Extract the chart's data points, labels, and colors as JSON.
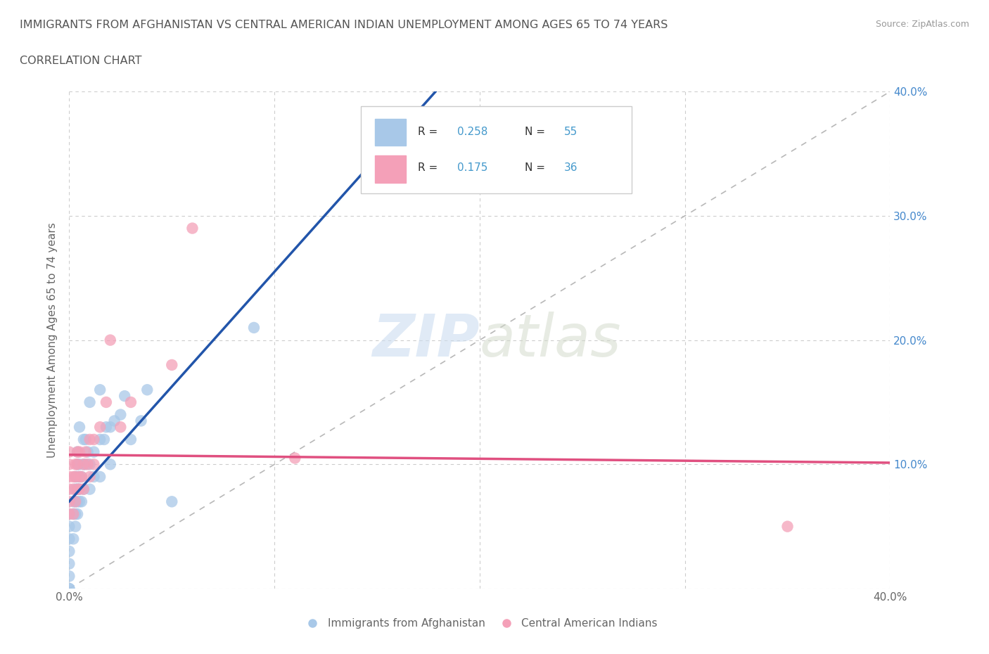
{
  "title": "IMMIGRANTS FROM AFGHANISTAN VS CENTRAL AMERICAN INDIAN UNEMPLOYMENT AMONG AGES 65 TO 74 YEARS",
  "subtitle": "CORRELATION CHART",
  "source": "Source: ZipAtlas.com",
  "ylabel": "Unemployment Among Ages 65 to 74 years",
  "xlim": [
    0.0,
    0.4
  ],
  "ylim": [
    0.0,
    0.4
  ],
  "afghanistan_color": "#a8c8e8",
  "central_american_color": "#f4a0b8",
  "afghanistan_line_color": "#2255aa",
  "central_american_line_color": "#e05080",
  "diagonal_color": "#b8b8b8",
  "r_afghanistan": "0.258",
  "n_afghanistan": "55",
  "r_central_american": "0.175",
  "n_central_american": "36",
  "watermark_zip": "ZIP",
  "watermark_atlas": "atlas",
  "legend_label1": "Immigrants from Afghanistan",
  "legend_label2": "Central American Indians",
  "afghanistan_x": [
    0.0,
    0.0,
    0.0,
    0.0,
    0.0,
    0.0,
    0.0,
    0.0,
    0.002,
    0.002,
    0.002,
    0.003,
    0.003,
    0.003,
    0.003,
    0.003,
    0.004,
    0.004,
    0.004,
    0.004,
    0.004,
    0.004,
    0.005,
    0.005,
    0.005,
    0.005,
    0.005,
    0.006,
    0.006,
    0.007,
    0.007,
    0.007,
    0.008,
    0.008,
    0.009,
    0.01,
    0.01,
    0.01,
    0.012,
    0.012,
    0.015,
    0.015,
    0.015,
    0.017,
    0.018,
    0.02,
    0.02,
    0.022,
    0.025,
    0.027,
    0.03,
    0.035,
    0.038,
    0.05,
    0.09
  ],
  "afghanistan_y": [
    0.0,
    0.0,
    0.01,
    0.02,
    0.03,
    0.04,
    0.05,
    0.06,
    0.04,
    0.06,
    0.07,
    0.05,
    0.06,
    0.07,
    0.08,
    0.09,
    0.06,
    0.07,
    0.08,
    0.09,
    0.1,
    0.11,
    0.07,
    0.08,
    0.09,
    0.1,
    0.13,
    0.07,
    0.09,
    0.08,
    0.1,
    0.12,
    0.1,
    0.12,
    0.11,
    0.08,
    0.1,
    0.15,
    0.09,
    0.11,
    0.09,
    0.12,
    0.16,
    0.12,
    0.13,
    0.1,
    0.13,
    0.135,
    0.14,
    0.155,
    0.12,
    0.135,
    0.16,
    0.07,
    0.21
  ],
  "central_american_x": [
    0.0,
    0.0,
    0.0,
    0.0,
    0.0,
    0.0,
    0.002,
    0.002,
    0.002,
    0.003,
    0.003,
    0.003,
    0.004,
    0.004,
    0.004,
    0.005,
    0.005,
    0.005,
    0.006,
    0.007,
    0.007,
    0.008,
    0.009,
    0.01,
    0.01,
    0.012,
    0.012,
    0.015,
    0.018,
    0.02,
    0.025,
    0.03,
    0.05,
    0.06,
    0.11,
    0.35
  ],
  "central_american_y": [
    0.06,
    0.07,
    0.08,
    0.09,
    0.1,
    0.11,
    0.06,
    0.08,
    0.09,
    0.07,
    0.09,
    0.1,
    0.08,
    0.1,
    0.11,
    0.08,
    0.09,
    0.11,
    0.09,
    0.08,
    0.1,
    0.11,
    0.1,
    0.09,
    0.12,
    0.1,
    0.12,
    0.13,
    0.15,
    0.2,
    0.13,
    0.15,
    0.18,
    0.29,
    0.105,
    0.05
  ]
}
